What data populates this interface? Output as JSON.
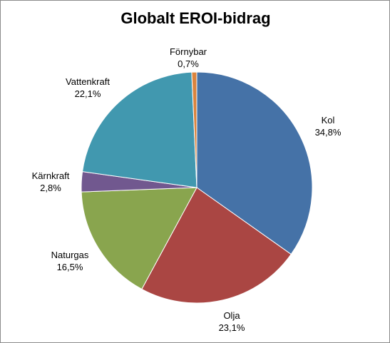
{
  "chart_data": {
    "type": "pie",
    "title": "Globalt EROI-bidrag",
    "slices": [
      {
        "label": "Kol",
        "value": 34.8,
        "value_text": "34,8%",
        "color": "#4572A7"
      },
      {
        "label": "Olja",
        "value": 23.1,
        "value_text": "23,1%",
        "color": "#AA4643"
      },
      {
        "label": "Naturgas",
        "value": 16.5,
        "value_text": "16,5%",
        "color": "#89A54E"
      },
      {
        "label": "Kärnkraft",
        "value": 2.8,
        "value_text": "2,8%",
        "color": "#71588F"
      },
      {
        "label": "Vattenkraft",
        "value": 22.1,
        "value_text": "22,1%",
        "color": "#4198AF"
      },
      {
        "label": "Förnybar",
        "value": 0.7,
        "value_text": "0,7%",
        "color": "#DB843D"
      }
    ],
    "start_angle": "12 o'clock",
    "direction": "clockwise",
    "legend": "none",
    "data_labels": "outside"
  }
}
